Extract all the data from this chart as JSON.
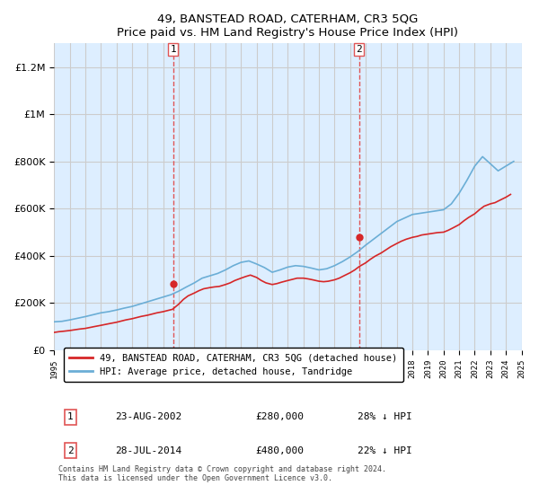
{
  "title": "49, BANSTEAD ROAD, CATERHAM, CR3 5QG",
  "subtitle": "Price paid vs. HM Land Registry's House Price Index (HPI)",
  "legend_line1": "49, BANSTEAD ROAD, CATERHAM, CR3 5QG (detached house)",
  "legend_line2": "HPI: Average price, detached house, Tandridge",
  "sale1_label": "1",
  "sale1_date": "23-AUG-2002",
  "sale1_price": "£280,000",
  "sale1_hpi": "28% ↓ HPI",
  "sale2_label": "2",
  "sale2_date": "28-JUL-2014",
  "sale2_price": "£480,000",
  "sale2_hpi": "22% ↓ HPI",
  "footnote": "Contains HM Land Registry data © Crown copyright and database right 2024.\nThis data is licensed under the Open Government Licence v3.0.",
  "hpi_color": "#6baed6",
  "price_color": "#d62728",
  "vline_color": "#e05555",
  "bg_color": "#ddeeff",
  "plot_bg": "#ffffff",
  "grid_color": "#cccccc",
  "ylim": [
    0,
    1300000
  ],
  "yticks": [
    0,
    200000,
    400000,
    600000,
    800000,
    1000000,
    1200000
  ],
  "ytick_labels": [
    "£0",
    "£200K",
    "£400K",
    "£600K",
    "£800K",
    "£1M",
    "£1.2M"
  ],
  "year_start": 1995,
  "year_end": 2025,
  "sale1_year": 2002.65,
  "sale2_year": 2014.57,
  "hpi_years": [
    1995,
    1995.5,
    1996,
    1996.5,
    1997,
    1997.5,
    1998,
    1998.5,
    1999,
    1999.5,
    2000,
    2000.5,
    2001,
    2001.5,
    2002,
    2002.5,
    2003,
    2003.5,
    2004,
    2004.5,
    2005,
    2005.5,
    2006,
    2006.5,
    2007,
    2007.5,
    2008,
    2008.5,
    2009,
    2009.5,
    2010,
    2010.5,
    2011,
    2011.5,
    2012,
    2012.5,
    2013,
    2013.5,
    2014,
    2014.5,
    2015,
    2015.5,
    2016,
    2016.5,
    2017,
    2017.5,
    2018,
    2018.5,
    2019,
    2019.5,
    2020,
    2020.5,
    2021,
    2021.5,
    2022,
    2022.5,
    2023,
    2023.5,
    2024,
    2024.5
  ],
  "hpi_values": [
    120000,
    122000,
    128000,
    135000,
    142000,
    150000,
    158000,
    163000,
    170000,
    178000,
    185000,
    195000,
    205000,
    215000,
    225000,
    235000,
    250000,
    268000,
    285000,
    305000,
    315000,
    325000,
    340000,
    358000,
    372000,
    378000,
    365000,
    350000,
    330000,
    340000,
    352000,
    358000,
    355000,
    348000,
    340000,
    345000,
    358000,
    375000,
    395000,
    418000,
    445000,
    470000,
    495000,
    520000,
    545000,
    560000,
    575000,
    580000,
    585000,
    590000,
    595000,
    620000,
    665000,
    720000,
    780000,
    820000,
    790000,
    760000,
    780000,
    800000
  ],
  "price_years": [
    1995,
    1995.3,
    1995.6,
    1996,
    1996.3,
    1996.6,
    1997,
    1997.3,
    1997.6,
    1998,
    1998.3,
    1998.6,
    1999,
    1999.3,
    1999.6,
    2000,
    2000.3,
    2000.6,
    2001,
    2001.3,
    2001.6,
    2002,
    2002.3,
    2002.6,
    2003,
    2003.3,
    2003.6,
    2004,
    2004.3,
    2004.6,
    2005,
    2005.3,
    2005.6,
    2006,
    2006.3,
    2006.6,
    2007,
    2007.3,
    2007.6,
    2008,
    2008.3,
    2008.6,
    2009,
    2009.3,
    2009.6,
    2010,
    2010.3,
    2010.6,
    2011,
    2011.3,
    2011.6,
    2012,
    2012.3,
    2012.6,
    2013,
    2013.3,
    2013.6,
    2014,
    2014.3,
    2014.6,
    2015,
    2015.3,
    2015.6,
    2016,
    2016.3,
    2016.6,
    2017,
    2017.3,
    2017.6,
    2018,
    2018.3,
    2018.6,
    2019,
    2019.3,
    2019.6,
    2020,
    2020.3,
    2020.6,
    2021,
    2021.3,
    2021.6,
    2022,
    2022.3,
    2022.6,
    2023,
    2023.3,
    2023.6,
    2024,
    2024.3
  ],
  "price_values": [
    75000,
    78000,
    80000,
    83000,
    86000,
    89000,
    92000,
    96000,
    100000,
    105000,
    109000,
    113000,
    118000,
    123000,
    128000,
    133000,
    138000,
    143000,
    148000,
    153000,
    158000,
    163000,
    168000,
    173000,
    195000,
    215000,
    230000,
    242000,
    252000,
    260000,
    265000,
    268000,
    270000,
    278000,
    285000,
    295000,
    305000,
    312000,
    318000,
    308000,
    295000,
    285000,
    278000,
    282000,
    288000,
    295000,
    300000,
    305000,
    305000,
    302000,
    298000,
    292000,
    290000,
    292000,
    298000,
    305000,
    315000,
    328000,
    340000,
    355000,
    370000,
    385000,
    398000,
    412000,
    425000,
    438000,
    452000,
    462000,
    470000,
    478000,
    482000,
    488000,
    492000,
    495000,
    498000,
    500000,
    508000,
    518000,
    532000,
    548000,
    562000,
    578000,
    595000,
    610000,
    620000,
    625000,
    635000,
    648000,
    660000
  ],
  "sale1_point_year": 2002.65,
  "sale1_point_value": 280000,
  "sale2_point_year": 2014.57,
  "sale2_point_value": 480000
}
